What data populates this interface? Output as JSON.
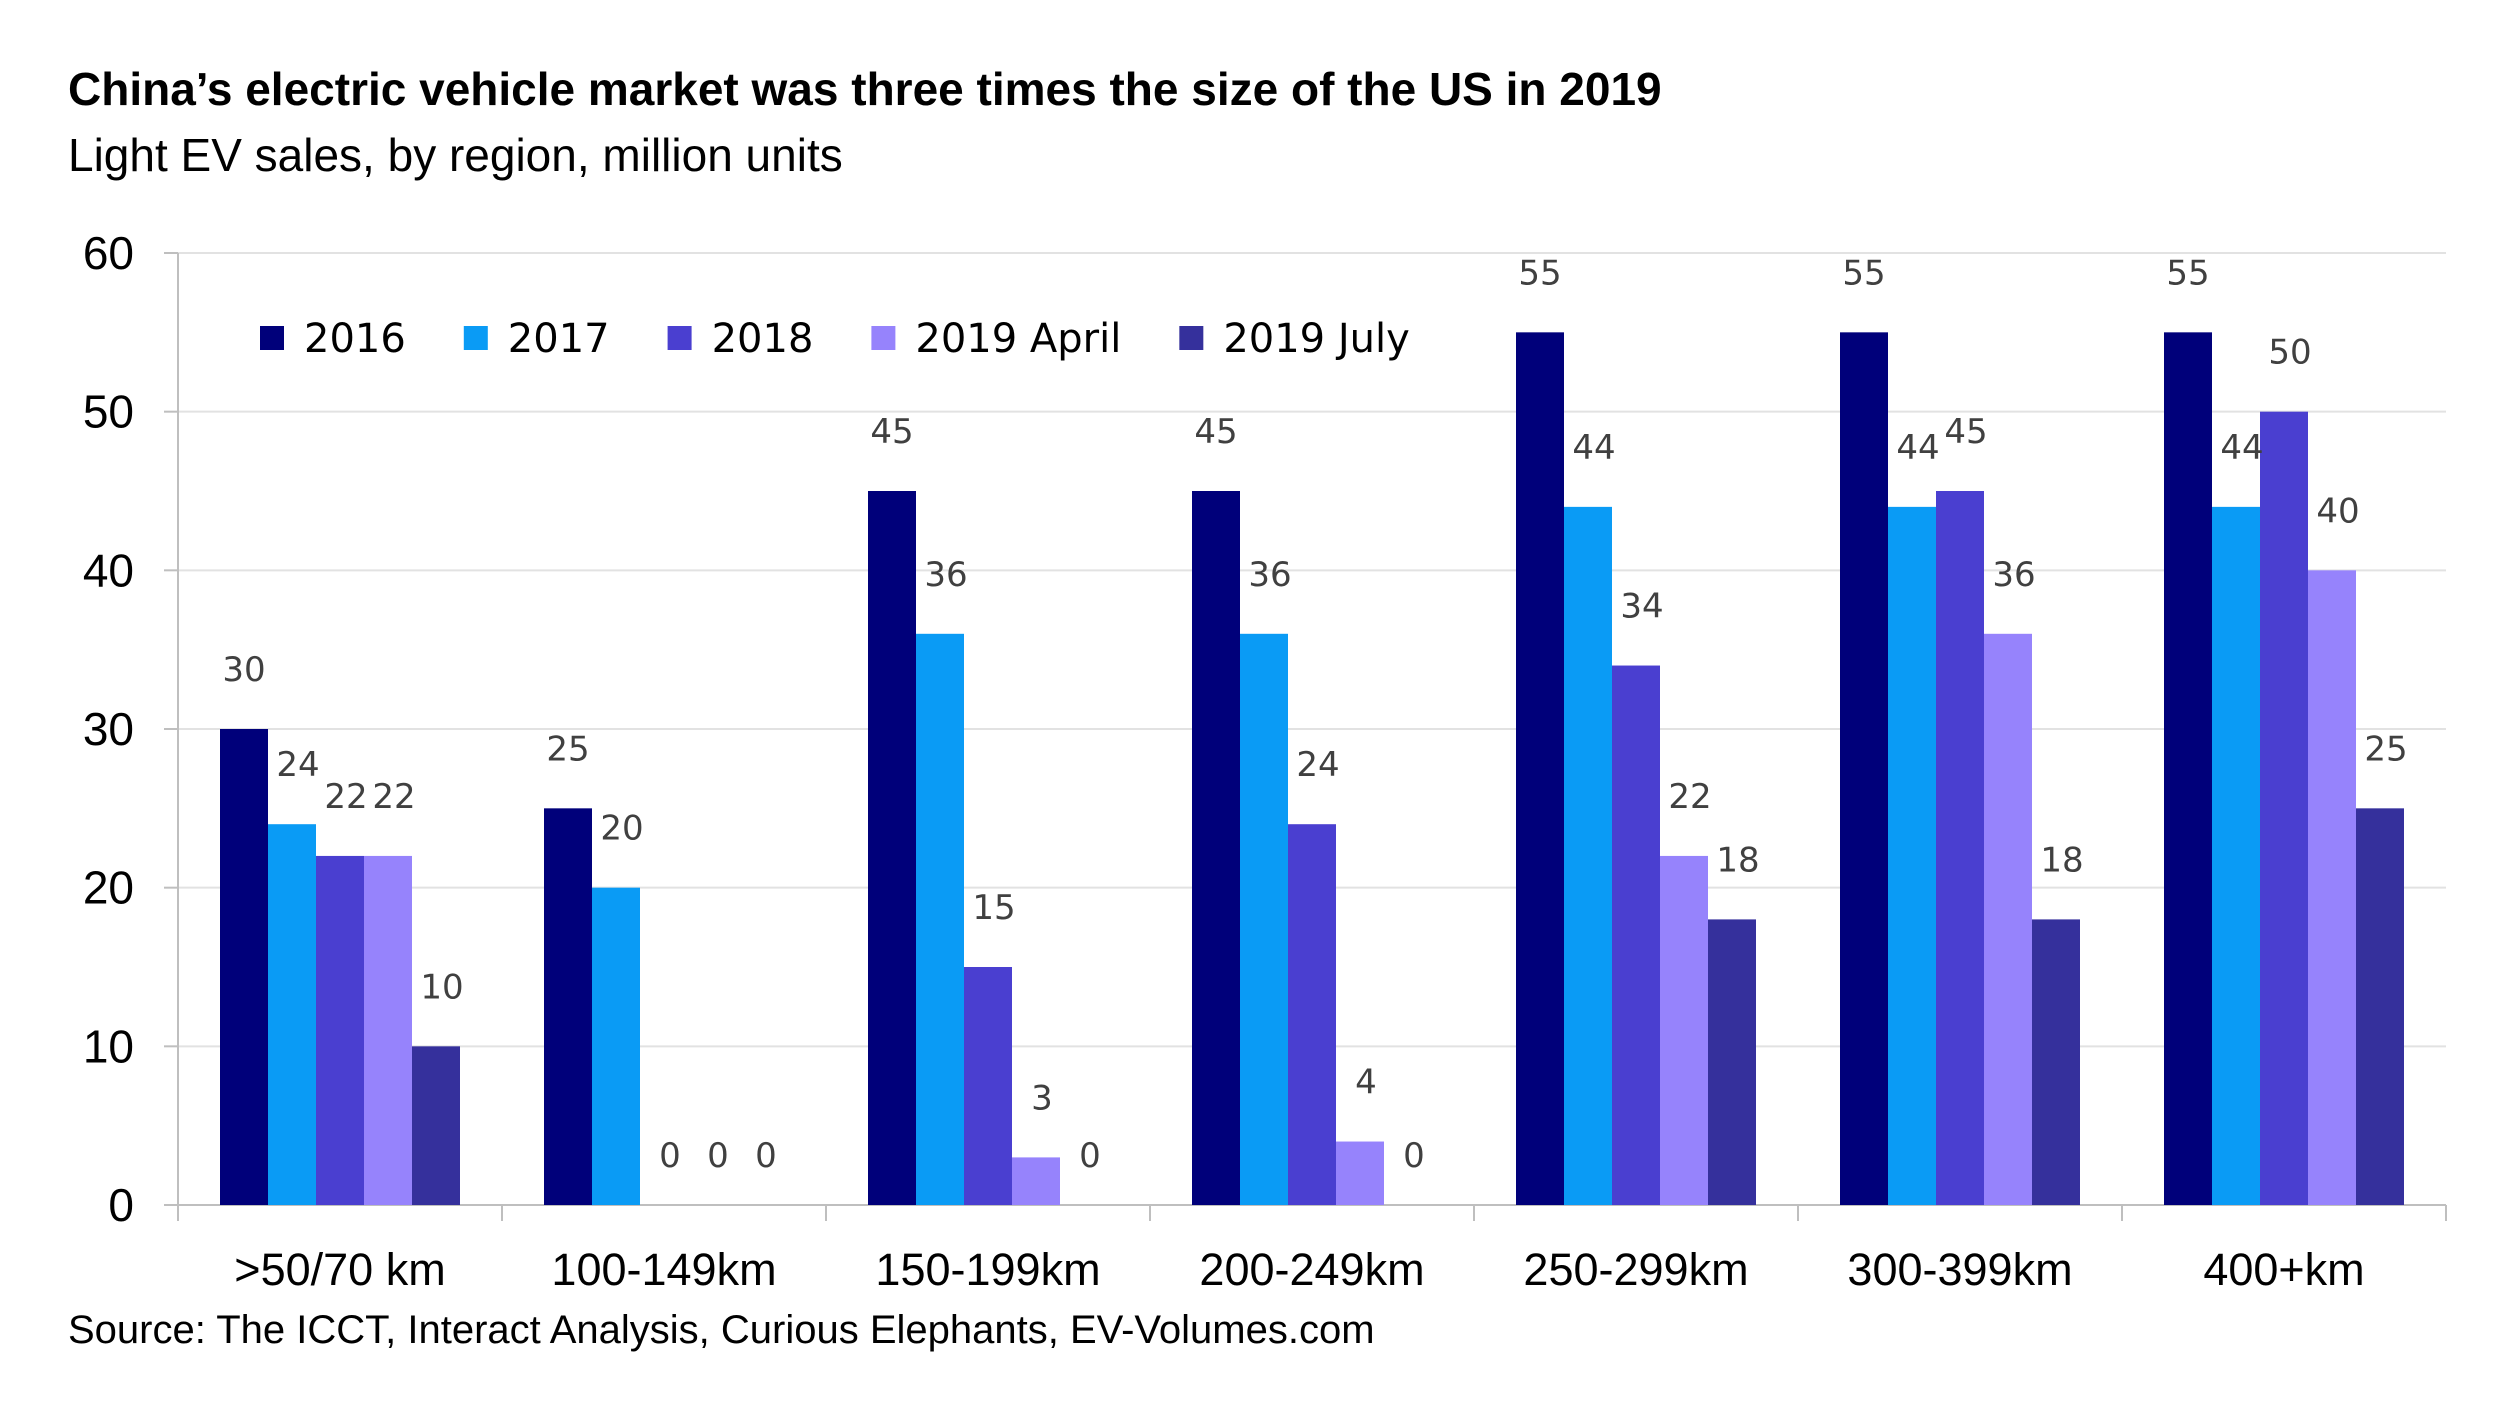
{
  "title": "China’s electric vehicle market was three times the size of the US in 2019",
  "subtitle": "Light EV sales, by region, million units",
  "source": "Source: The ICCT, Interact Analysis, Curious Elephants, EV-Volumes.com",
  "chart_data": {
    "type": "bar",
    "title": "China’s electric vehicle market was three times the size of the US in 2019",
    "subtitle": "Light EV sales, by region, million units",
    "xlabel": "",
    "ylabel": "",
    "ylim": [
      0,
      60
    ],
    "yticks": [
      0,
      10,
      20,
      30,
      40,
      50,
      60
    ],
    "grid": true,
    "legend_position": "top-left",
    "categories": [
      ">50/70 km",
      "100-149km",
      "150-199km",
      "200-249km",
      "250-299km",
      "300-399km",
      "400+km"
    ],
    "series": [
      {
        "name": "2016",
        "color": "#00007a",
        "values": [
          30,
          25,
          45,
          45,
          55,
          55,
          55
        ]
      },
      {
        "name": "2017",
        "color": "#0a9bf5",
        "values": [
          24,
          20,
          36,
          36,
          44,
          44,
          44
        ]
      },
      {
        "name": "2018",
        "color": "#4a3fd0",
        "values": [
          22,
          0,
          15,
          24,
          34,
          45,
          50
        ]
      },
      {
        "name": "2019 April",
        "color": "#9683fc",
        "values": [
          22,
          0,
          3,
          4,
          22,
          36,
          40
        ]
      },
      {
        "name": "2019 July",
        "color": "#35309c",
        "values": [
          10,
          0,
          0,
          0,
          18,
          18,
          25
        ]
      }
    ]
  }
}
